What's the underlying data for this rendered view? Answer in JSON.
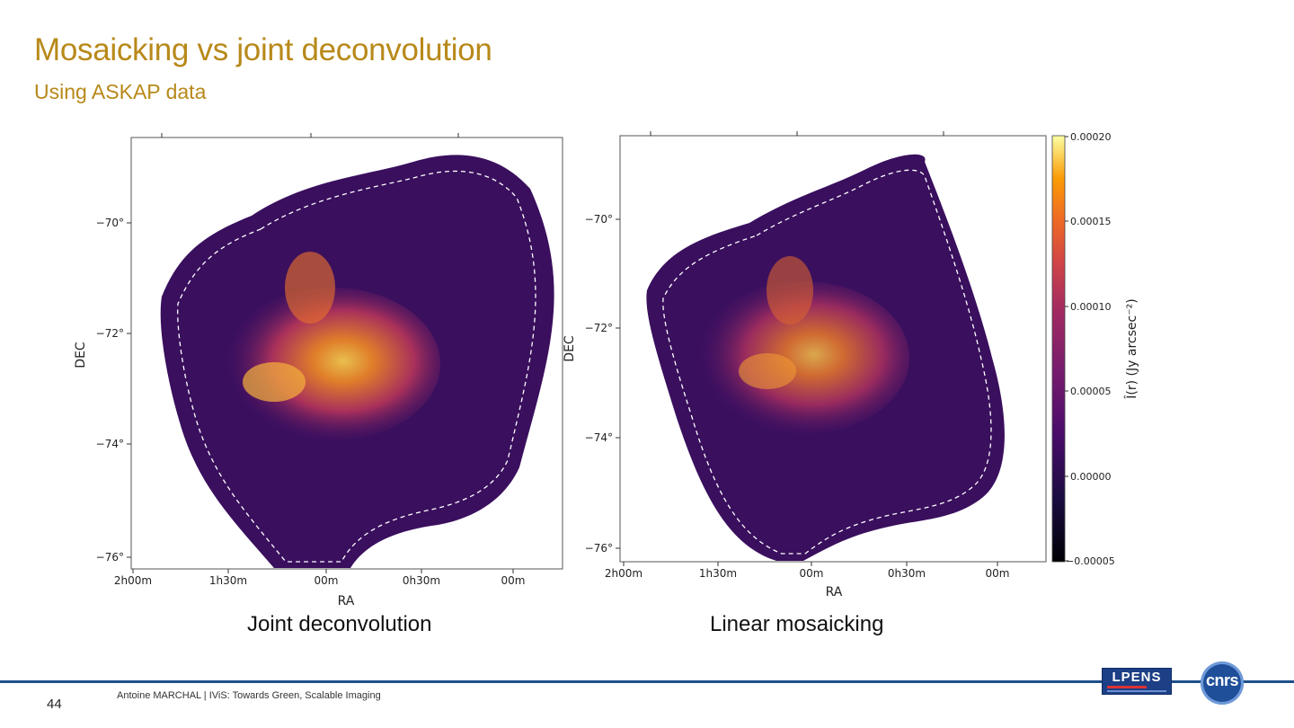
{
  "slide": {
    "title": "Mosaicking vs joint deconvolution",
    "subtitle": "Using ASKAP data",
    "page_number": "44",
    "footer": "Antoine MARCHAL  | IViS: Towards Green, Scalable Imaging",
    "logos": {
      "lpens": "LPENS",
      "cnrs": "cnrs"
    }
  },
  "figures": [
    {
      "caption": "Joint deconvolution",
      "xlabel": "RA",
      "ylabel": "DEC",
      "xticks": [
        "2h00m",
        "1h30m",
        "00m",
        "0h30m",
        "00m"
      ],
      "yticks": [
        "−70°",
        "−72°",
        "−74°",
        "−76°"
      ]
    },
    {
      "caption": "Linear mosaicking",
      "xlabel": "RA",
      "ylabel": "DEC",
      "xticks": [
        "2h00m",
        "1h30m",
        "00m",
        "0h30m",
        "00m"
      ],
      "yticks": [
        "−70°",
        "−72°",
        "−74°",
        "−76°"
      ]
    }
  ],
  "colorbar": {
    "label": "Î(r) (Jy arcsec⁻²)",
    "ticks": [
      "0.00020",
      "0.00015",
      "0.00010",
      "0.00005",
      "0.00000",
      "−0.00005"
    ],
    "range": [
      -5e-05,
      0.0002
    ],
    "colormap": "inferno"
  },
  "colors": {
    "title": "#b8891a",
    "footer_rule": "#1e4f8a",
    "map_background": "#3a0f5e"
  }
}
